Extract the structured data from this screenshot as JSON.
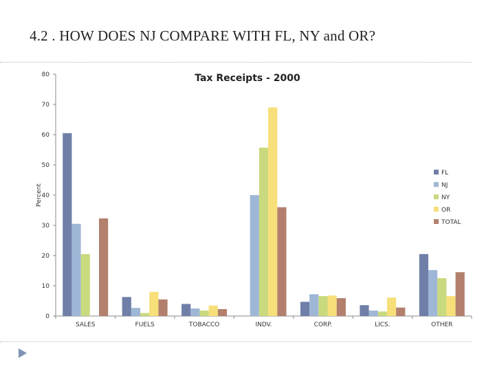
{
  "slide": {
    "title": "4.2 . HOW DOES NJ COMPARE WITH FL, NY and OR?"
  },
  "chart_data": {
    "type": "bar",
    "title": "Tax Receipts - 2000",
    "xlabel": "",
    "ylabel": "Percent",
    "ylim": [
      0,
      80
    ],
    "yticks": [
      0,
      10,
      20,
      30,
      40,
      50,
      60,
      70,
      80
    ],
    "grid": false,
    "legend_position": "right",
    "categories": [
      "SALES",
      "FUELS",
      "TOBACCO",
      "INDV.",
      "CORP.",
      "LICS.",
      "OTHER"
    ],
    "series": [
      {
        "name": "FL",
        "color": "#6f7fa8",
        "values": [
          60.5,
          6.3,
          4.0,
          0,
          4.7,
          3.6,
          20.5
        ]
      },
      {
        "name": "NJ",
        "color": "#9fb7d6",
        "values": [
          30.5,
          2.7,
          2.5,
          40.0,
          7.2,
          1.8,
          15.2
        ]
      },
      {
        "name": "NY",
        "color": "#c9da7e",
        "values": [
          20.5,
          1.0,
          1.8,
          55.7,
          6.6,
          1.5,
          12.5
        ]
      },
      {
        "name": "OR",
        "color": "#f7df7a",
        "values": [
          0,
          8.0,
          3.5,
          69.0,
          6.8,
          6.1,
          6.6
        ]
      },
      {
        "name": "TOTAL",
        "color": "#b2806d",
        "values": [
          32.3,
          5.5,
          2.3,
          36.0,
          5.9,
          2.8,
          14.5
        ]
      }
    ]
  }
}
